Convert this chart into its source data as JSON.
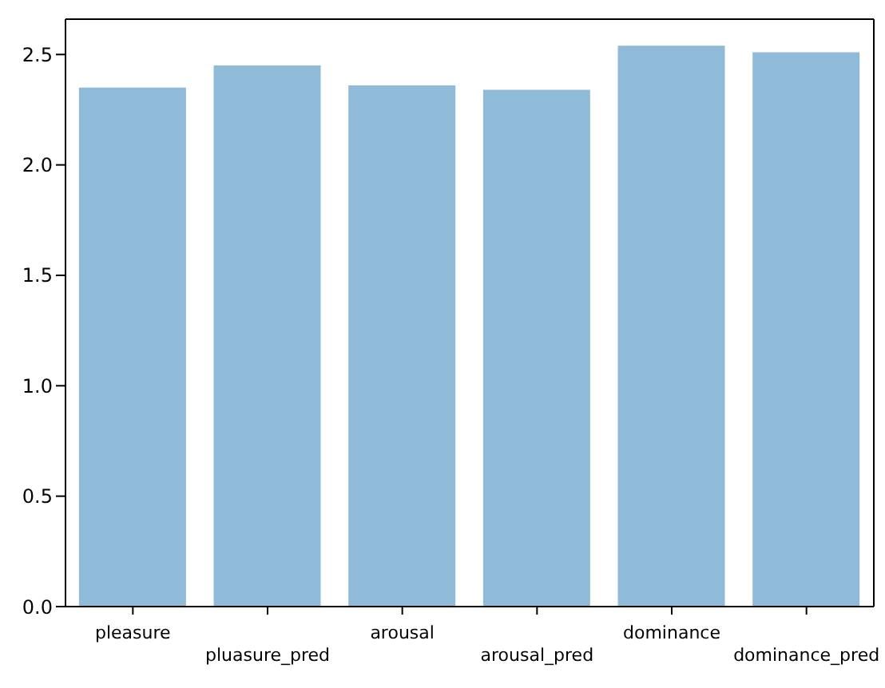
{
  "chart_data": {
    "type": "bar",
    "categories": [
      "pleasure",
      "pluasure_pred",
      "arousal",
      "arousal_pred",
      "dominance",
      "dominance_pred"
    ],
    "values": [
      2.35,
      2.45,
      2.36,
      2.34,
      2.54,
      2.51
    ],
    "color": "#8fbbd9",
    "ylim": [
      0,
      2.66
    ],
    "yticks": [
      {
        "value": 0,
        "label": "0.0"
      },
      {
        "value": 0.5,
        "label": "0.5"
      },
      {
        "value": 1,
        "label": "1.0"
      },
      {
        "value": 1.5,
        "label": "1.5"
      },
      {
        "value": 2,
        "label": "2.0"
      },
      {
        "value": 2.5,
        "label": "2.5"
      }
    ],
    "grid": false
  }
}
